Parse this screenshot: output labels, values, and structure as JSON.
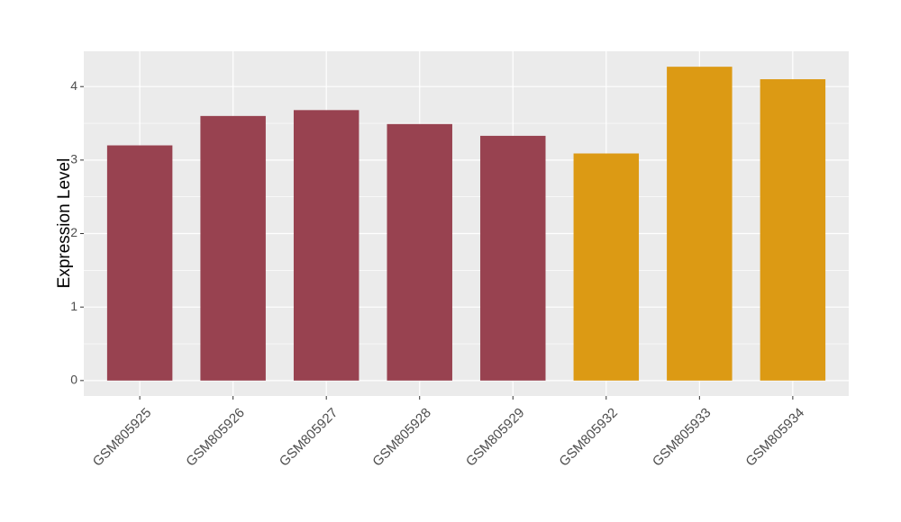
{
  "chart_data": {
    "type": "bar",
    "y_label": "Expression Level",
    "categories": [
      "GSM805925",
      "GSM805926",
      "GSM805927",
      "GSM805928",
      "GSM805929",
      "GSM805932",
      "GSM805933",
      "GSM805934"
    ],
    "values": [
      3.2,
      3.6,
      3.68,
      3.49,
      3.33,
      3.09,
      4.27,
      4.1
    ],
    "colors": [
      "#984250",
      "#984250",
      "#984250",
      "#984250",
      "#984250",
      "#dc9a14",
      "#dc9a14",
      "#dc9a14"
    ],
    "ylim": [
      -0.21,
      4.48
    ],
    "yticks": [
      0,
      1,
      2,
      3,
      4
    ],
    "grid": true
  }
}
